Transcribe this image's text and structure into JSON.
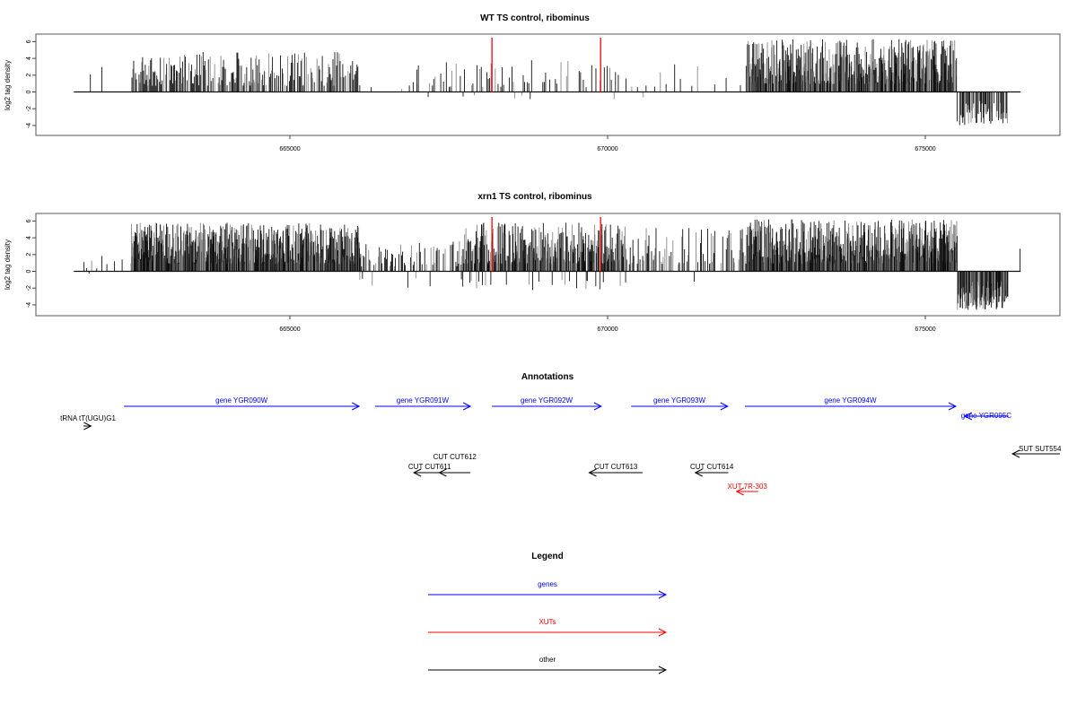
{
  "chart_data": [
    {
      "type": "bar",
      "title": "WT TS control, ribominus",
      "ylabel": "log2 tag density",
      "xlabel": "",
      "xlim": [
        661000,
        677120
      ],
      "ylim": [
        -5.2,
        6.9
      ],
      "x_ticks": [
        665000,
        670000,
        675000
      ],
      "x_tick_labels": [
        "665000",
        "670000",
        "675000"
      ],
      "y_ticks": [
        -4,
        -2,
        0,
        2,
        4,
        6
      ],
      "y_tick_labels": [
        "-4",
        "-2",
        "0",
        "2",
        "4",
        "6"
      ],
      "baseline": [
        661600,
        676500
      ],
      "highlight_lines": [
        668180,
        669890
      ],
      "highlight_color": "#ff0000",
      "regions": [
        {
          "start": 661800,
          "end": 662050,
          "step": 60,
          "max": 3.4,
          "min": 0,
          "fill": 0.5
        },
        {
          "start": 662500,
          "end": 666100,
          "step": 14,
          "max": 4.8,
          "min": 0,
          "fill": 0.75
        },
        {
          "start": 666100,
          "end": 667000,
          "step": 60,
          "max": 2.0,
          "min": -1.1,
          "fill": 0.35
        },
        {
          "start": 667000,
          "end": 670200,
          "step": 22,
          "max": 3.8,
          "min": -0.9,
          "fill": 0.45
        },
        {
          "start": 670200,
          "end": 672200,
          "step": 45,
          "max": 3.5,
          "min": -0.9,
          "fill": 0.4
        },
        {
          "start": 672200,
          "end": 675500,
          "step": 7,
          "max": 6.3,
          "min": 0,
          "fill": 0.9
        },
        {
          "start": 675500,
          "end": 676300,
          "step": 10,
          "max": 0,
          "min": -4.0,
          "fill": 0.7
        }
      ]
    },
    {
      "type": "bar",
      "title": "xrn1 TS control, ribominus",
      "ylabel": "log2 tag density",
      "xlabel": "",
      "xlim": [
        661000,
        677120
      ],
      "ylim": [
        -5.2,
        6.9
      ],
      "x_ticks": [
        665000,
        670000,
        675000
      ],
      "x_tick_labels": [
        "665000",
        "670000",
        "675000"
      ],
      "y_ticks": [
        -4,
        -2,
        0,
        2,
        4,
        6
      ],
      "y_tick_labels": [
        "-4",
        "-2",
        "0",
        "2",
        "4",
        "6"
      ],
      "baseline": [
        661600,
        676500
      ],
      "highlight_lines": [
        668180,
        669890
      ],
      "highlight_color": "#ff0000",
      "regions": [
        {
          "start": 661600,
          "end": 662500,
          "step": 40,
          "max": 2.2,
          "min": -0.5,
          "fill": 0.4
        },
        {
          "start": 662500,
          "end": 666100,
          "step": 6,
          "max": 5.8,
          "min": 0,
          "fill": 0.95
        },
        {
          "start": 666100,
          "end": 667700,
          "step": 14,
          "max": 3.6,
          "min": -2.0,
          "fill": 0.6
        },
        {
          "start": 667700,
          "end": 670300,
          "step": 7,
          "max": 5.8,
          "min": -2.3,
          "fill": 0.85
        },
        {
          "start": 670300,
          "end": 672200,
          "step": 14,
          "max": 5.2,
          "min": -2.0,
          "fill": 0.6
        },
        {
          "start": 672200,
          "end": 675500,
          "step": 6,
          "max": 6.2,
          "min": 0,
          "fill": 0.95
        },
        {
          "start": 675500,
          "end": 676300,
          "step": 6,
          "max": 0,
          "min": -4.6,
          "fill": 0.9
        },
        {
          "start": 676490,
          "end": 676500,
          "step": 20,
          "max": 2.7,
          "min": 2.7,
          "fill": 1.0
        }
      ]
    }
  ],
  "annotations": {
    "title": "Annotations",
    "features": [
      {
        "label": "gene YGR090W",
        "start": 662390,
        "end": 666090,
        "strand": "+",
        "track": 0,
        "color": "#0000ff"
      },
      {
        "label": "gene YGR091W",
        "start": 666340,
        "end": 667840,
        "strand": "+",
        "track": 0,
        "color": "#0000ff"
      },
      {
        "label": "gene YGR092W",
        "start": 668180,
        "end": 669900,
        "strand": "+",
        "track": 0,
        "color": "#0000ff"
      },
      {
        "label": "gene YGR093W",
        "start": 670370,
        "end": 671890,
        "strand": "+",
        "track": 0,
        "color": "#0000ff"
      },
      {
        "label": "gene YGR094W",
        "start": 672160,
        "end": 675480,
        "strand": "+",
        "track": 0,
        "color": "#0000ff"
      },
      {
        "label": "gene YGR095C",
        "start": 675620,
        "end": 676310,
        "strand": "-",
        "track": 1,
        "color": "#0000ff"
      },
      {
        "label": "tRNA tT(UGU)G1",
        "start": 661750,
        "end": 661870,
        "strand": "+",
        "track": 2,
        "color": "#000000"
      },
      {
        "label": "SUT SUT554",
        "start": 676370,
        "end": 677200,
        "strand": "-",
        "track": 3,
        "color": "#000000"
      },
      {
        "label": "CUT CUT611",
        "start": 666950,
        "end": 667450,
        "strand": "-",
        "track": 4,
        "color": "#000000"
      },
      {
        "label": "CUT CUT612",
        "start": 667350,
        "end": 667840,
        "strand": "-",
        "track": 4,
        "color": "#000000"
      },
      {
        "label": "CUT CUT613",
        "start": 669710,
        "end": 670550,
        "strand": "-",
        "track": 4,
        "color": "#000000"
      },
      {
        "label": "CUT CUT614",
        "start": 671380,
        "end": 671900,
        "strand": "-",
        "track": 4,
        "color": "#000000"
      },
      {
        "label": "XUT 7R-303",
        "start": 672030,
        "end": 672370,
        "strand": "-",
        "track": 5,
        "color": "#ff0000"
      }
    ]
  },
  "legend": {
    "title": "Legend",
    "items": [
      {
        "label": "genes",
        "color": "#0000ff"
      },
      {
        "label": "XUTs",
        "color": "#ff0000"
      },
      {
        "label": "other",
        "color": "#000000"
      }
    ]
  }
}
